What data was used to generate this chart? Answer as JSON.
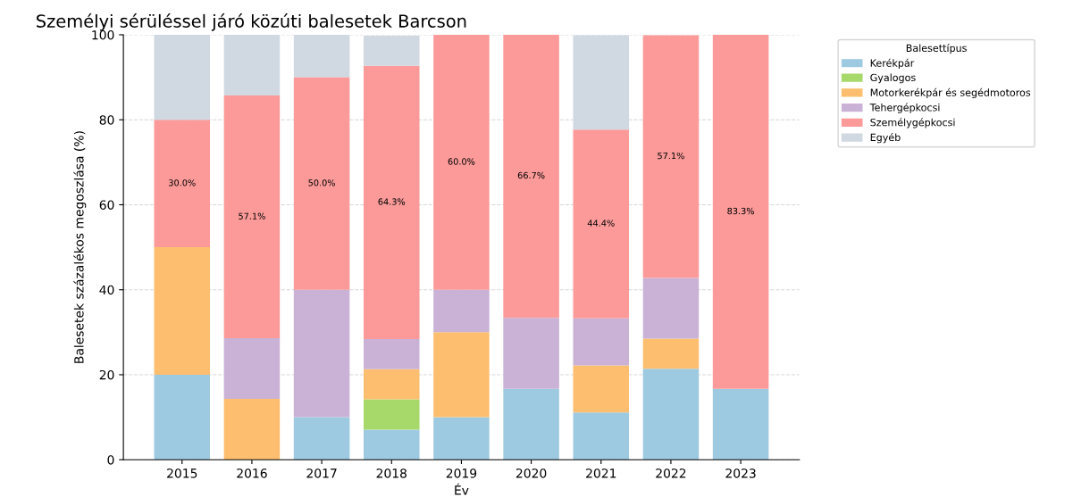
{
  "chart_data": {
    "type": "bar",
    "stacked": true,
    "title": "Személyi sérüléssel járó közúti balesetek Barcson",
    "xlabel": "Év",
    "ylabel": "Balesetek százalékos megoszlása (%)",
    "legend_title": "Balesettípus",
    "categories": [
      "2015",
      "2016",
      "2017",
      "2018",
      "2019",
      "2020",
      "2021",
      "2022",
      "2023"
    ],
    "series": [
      {
        "name": "Kerékpár",
        "color": "#9ecae1",
        "values": [
          20,
          0,
          10,
          7.1,
          10,
          16.7,
          11.1,
          21.4,
          16.7
        ]
      },
      {
        "name": "Gyalogos",
        "color": "#a6d96a",
        "values": [
          0,
          0,
          0,
          7.1,
          0,
          0,
          0,
          0,
          0
        ]
      },
      {
        "name": "Motorkerékpár és segédmotoros",
        "color": "#fdbf6f",
        "values": [
          30,
          14.3,
          0,
          7.1,
          20,
          0,
          11.1,
          7.1,
          0
        ]
      },
      {
        "name": "Tehergépkocsi",
        "color": "#cab2d6",
        "values": [
          0,
          14.3,
          30,
          7.1,
          10,
          16.7,
          11.1,
          14.3,
          0
        ]
      },
      {
        "name": "Személygépkocsi",
        "color": "#fb9a99",
        "values": [
          30,
          57.1,
          50,
          64.3,
          60,
          66.7,
          44.4,
          57.1,
          83.3
        ],
        "value_labels": [
          "30.0%",
          "57.1%",
          "50.0%",
          "64.3%",
          "60.0%",
          "66.7%",
          "44.4%",
          "57.1%",
          "83.3%"
        ]
      },
      {
        "name": "Egyéb",
        "color": "#d0d8e2",
        "values": [
          20,
          14.3,
          10,
          7.1,
          0,
          0,
          22.2,
          0,
          0
        ]
      }
    ],
    "ylim": [
      0,
      100
    ],
    "yticks": [
      0,
      20,
      40,
      60,
      80,
      100
    ],
    "grid": "y",
    "line_style": "dashed",
    "legend": "top right"
  }
}
